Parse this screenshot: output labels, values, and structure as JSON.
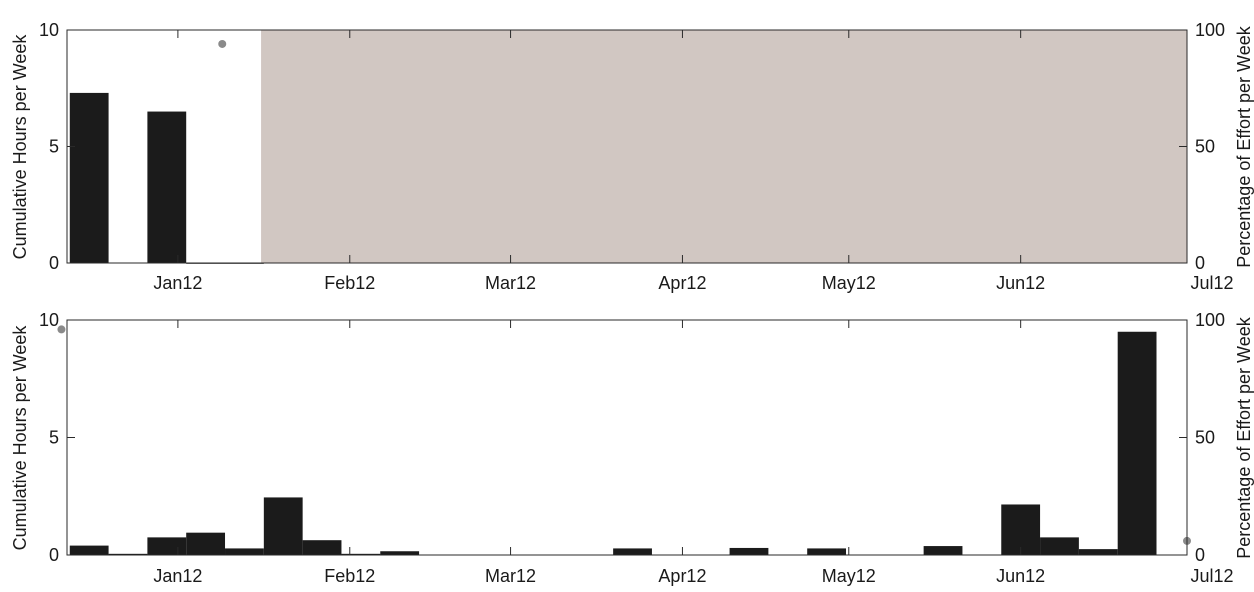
{
  "chart_data": [
    {
      "type": "bar",
      "panel": "top",
      "xlabel": "",
      "ylabel": "Cumulative Hours per Week",
      "y2label": "Percentage of Effort per Week",
      "ylim": [
        0,
        10
      ],
      "y2lim": [
        0,
        100
      ],
      "yticks": [
        "0",
        "5",
        "10"
      ],
      "y2ticks": [
        "0",
        "50",
        "100"
      ],
      "xlim": [
        "2011-12-12",
        "2012-07-01"
      ],
      "xticks": [
        {
          "date": "2012-01-01",
          "label": "Jan12"
        },
        {
          "date": "2012-02-01",
          "label": "Feb12"
        },
        {
          "date": "2012-03-01",
          "label": "Mar12"
        },
        {
          "date": "2012-04-01",
          "label": "Apr12"
        },
        {
          "date": "2012-05-01",
          "label": "May12"
        },
        {
          "date": "2012-06-01",
          "label": "Jun12"
        },
        {
          "date": "2012-07-01",
          "label": "Jul12"
        }
      ],
      "bars": [
        {
          "date": "2011-12-16",
          "value": 7.3
        },
        {
          "date": "2011-12-30",
          "value": 6.5
        },
        {
          "date": "2012-01-06",
          "value": 0
        },
        {
          "date": "2012-01-13",
          "value": 0
        }
      ],
      "effort_points": [
        {
          "date": "2012-01-09",
          "percent": 94
        }
      ],
      "no_effort_region": {
        "start": "2012-01-16",
        "end": "2012-07-01"
      },
      "colors": {
        "bars": "#1b1b1b",
        "no_effort": "#d1c7c2",
        "points": "#8a8a8a"
      }
    },
    {
      "type": "bar",
      "panel": "bottom",
      "xlabel": "",
      "ylabel": "Cumulative Hours per Week",
      "y2label": "Percentage of Effort per Week",
      "ylim": [
        0,
        10
      ],
      "y2lim": [
        0,
        100
      ],
      "yticks": [
        "0",
        "5",
        "10"
      ],
      "y2ticks": [
        "0",
        "50",
        "100"
      ],
      "xlim": [
        "2011-12-12",
        "2012-07-01"
      ],
      "xticks": [
        {
          "date": "2012-01-01",
          "label": "Jan12"
        },
        {
          "date": "2012-02-01",
          "label": "Feb12"
        },
        {
          "date": "2012-03-01",
          "label": "Mar12"
        },
        {
          "date": "2012-04-01",
          "label": "Apr12"
        },
        {
          "date": "2012-05-01",
          "label": "May12"
        },
        {
          "date": "2012-06-01",
          "label": "Jun12"
        },
        {
          "date": "2012-07-01",
          "label": "Jul12"
        }
      ],
      "bars": [
        {
          "date": "2011-12-16",
          "value": 0.4
        },
        {
          "date": "2011-12-23",
          "value": 0.05
        },
        {
          "date": "2011-12-30",
          "value": 0.75
        },
        {
          "date": "2012-01-06",
          "value": 0.95
        },
        {
          "date": "2012-01-13",
          "value": 0.28
        },
        {
          "date": "2012-01-20",
          "value": 2.45
        },
        {
          "date": "2012-01-27",
          "value": 0.63
        },
        {
          "date": "2012-02-03",
          "value": 0.05
        },
        {
          "date": "2012-02-10",
          "value": 0.16
        },
        {
          "date": "2012-03-23",
          "value": 0.28
        },
        {
          "date": "2012-04-13",
          "value": 0.3
        },
        {
          "date": "2012-04-27",
          "value": 0.28
        },
        {
          "date": "2012-05-18",
          "value": 0.38
        },
        {
          "date": "2012-06-01",
          "value": 2.15
        },
        {
          "date": "2012-06-08",
          "value": 0.75
        },
        {
          "date": "2012-06-15",
          "value": 0.25
        },
        {
          "date": "2012-06-22",
          "value": 9.5
        }
      ],
      "effort_points": [
        {
          "date": "2011-12-11",
          "percent": 96
        },
        {
          "date": "2012-07-01",
          "percent": 6
        }
      ],
      "colors": {
        "bars": "#1b1b1b",
        "points": "#8a8a8a"
      }
    }
  ]
}
